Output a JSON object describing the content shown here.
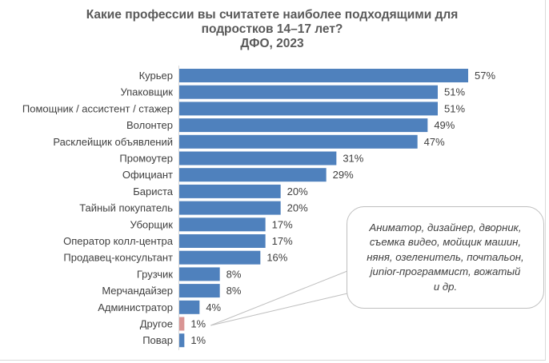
{
  "chart_data": {
    "type": "bar",
    "orientation": "horizontal",
    "title": [
      "Какие профессии вы считатете наиболее подходящими для",
      "подростков 14–17 лет?",
      "ДФО, 2023"
    ],
    "categories": [
      "Курьер",
      "Упаковщик",
      "Помощник / ассистент / стажер",
      "Волонтер",
      "Расклейщик объявлений",
      "Промоутер",
      "Официант",
      "Бариста",
      "Тайный покупатель",
      "Уборщик",
      "Оператор колл-центра",
      "Продавец-консультант",
      "Грузчик",
      "Мерчандайзер",
      "Администратор",
      "Другое",
      "Повар"
    ],
    "values": [
      57,
      51,
      51,
      49,
      47,
      31,
      29,
      20,
      20,
      17,
      17,
      16,
      8,
      8,
      4,
      1,
      1
    ],
    "labels": [
      "57%",
      "51%",
      "51%",
      "49%",
      "47%",
      "31%",
      "29%",
      "20%",
      "20%",
      "17%",
      "17%",
      "16%",
      "8%",
      "8%",
      "4%",
      "1%",
      "1%"
    ],
    "colors": [
      "#4f81bd",
      "#4f81bd",
      "#4f81bd",
      "#4f81bd",
      "#4f81bd",
      "#4f81bd",
      "#4f81bd",
      "#4f81bd",
      "#4f81bd",
      "#4f81bd",
      "#4f81bd",
      "#4f81bd",
      "#4f81bd",
      "#4f81bd",
      "#4f81bd",
      "#d99594",
      "#4f81bd"
    ],
    "xlim": [
      0,
      60
    ],
    "xlabel": "",
    "ylabel": "",
    "grid": false,
    "legend": "none",
    "annotation": {
      "target": "Другое",
      "lines": [
        "Аниматор,  дизайнер,  дворник,",
        "съемка видео, мойщик машин,",
        "няня, озеленитель,  почтальон,",
        "junior-программист,  вожатый",
        "и др."
      ]
    }
  }
}
